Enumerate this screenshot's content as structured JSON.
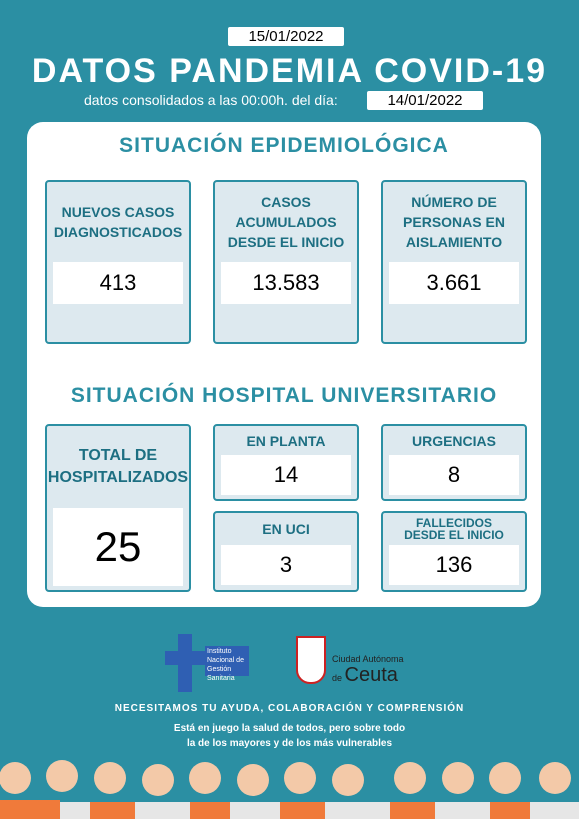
{
  "header": {
    "date": "15/01/2022",
    "title": "DATOS PANDEMIA COVID-19",
    "subtitle": "datos consolidados a las 00:00h. del día:",
    "data_date": "14/01/2022"
  },
  "epidemiologica": {
    "title": "SITUACIÓN EPIDEMIOLÓGICA",
    "cards": [
      {
        "label": [
          "NUEVOS CASOS",
          "DIAGNOSTICADOS"
        ],
        "value": "413"
      },
      {
        "label": [
          "CASOS",
          "ACUMULADOS",
          "DESDE EL INICIO"
        ],
        "value": "13.583"
      },
      {
        "label": [
          "NÚMERO DE",
          "PERSONAS EN",
          "AISLAMIENTO"
        ],
        "value": "3.661"
      }
    ]
  },
  "hospital": {
    "title": "SITUACIÓN HOSPITAL UNIVERSITARIO",
    "cards": [
      {
        "label": [
          "TOTAL DE",
          "HOSPITALIZADOS"
        ],
        "value": "25"
      },
      {
        "label": [
          "EN PLANTA"
        ],
        "value": "14"
      },
      {
        "label": [
          "URGENCIAS"
        ],
        "value": "8"
      },
      {
        "label": [
          "EN UCI"
        ],
        "value": "3"
      },
      {
        "label": [
          "FALLECIDOS",
          "DESDE EL INICIO"
        ],
        "value": "136"
      }
    ]
  },
  "logos": {
    "ingesa": [
      "Instituto Nacional de",
      "Gestión",
      "Sanitaria"
    ],
    "ceuta": [
      "Ciudad Autónoma",
      "de",
      "Ceuta"
    ]
  },
  "footer": {
    "slogan": "NECESITAMOS TU AYUDA, COLABORACIÓN Y COMPRENSIÓN",
    "lines": [
      "Está en juego la salud de todos, pero sobre todo",
      "la de los mayores y de los más vulnerables"
    ]
  }
}
